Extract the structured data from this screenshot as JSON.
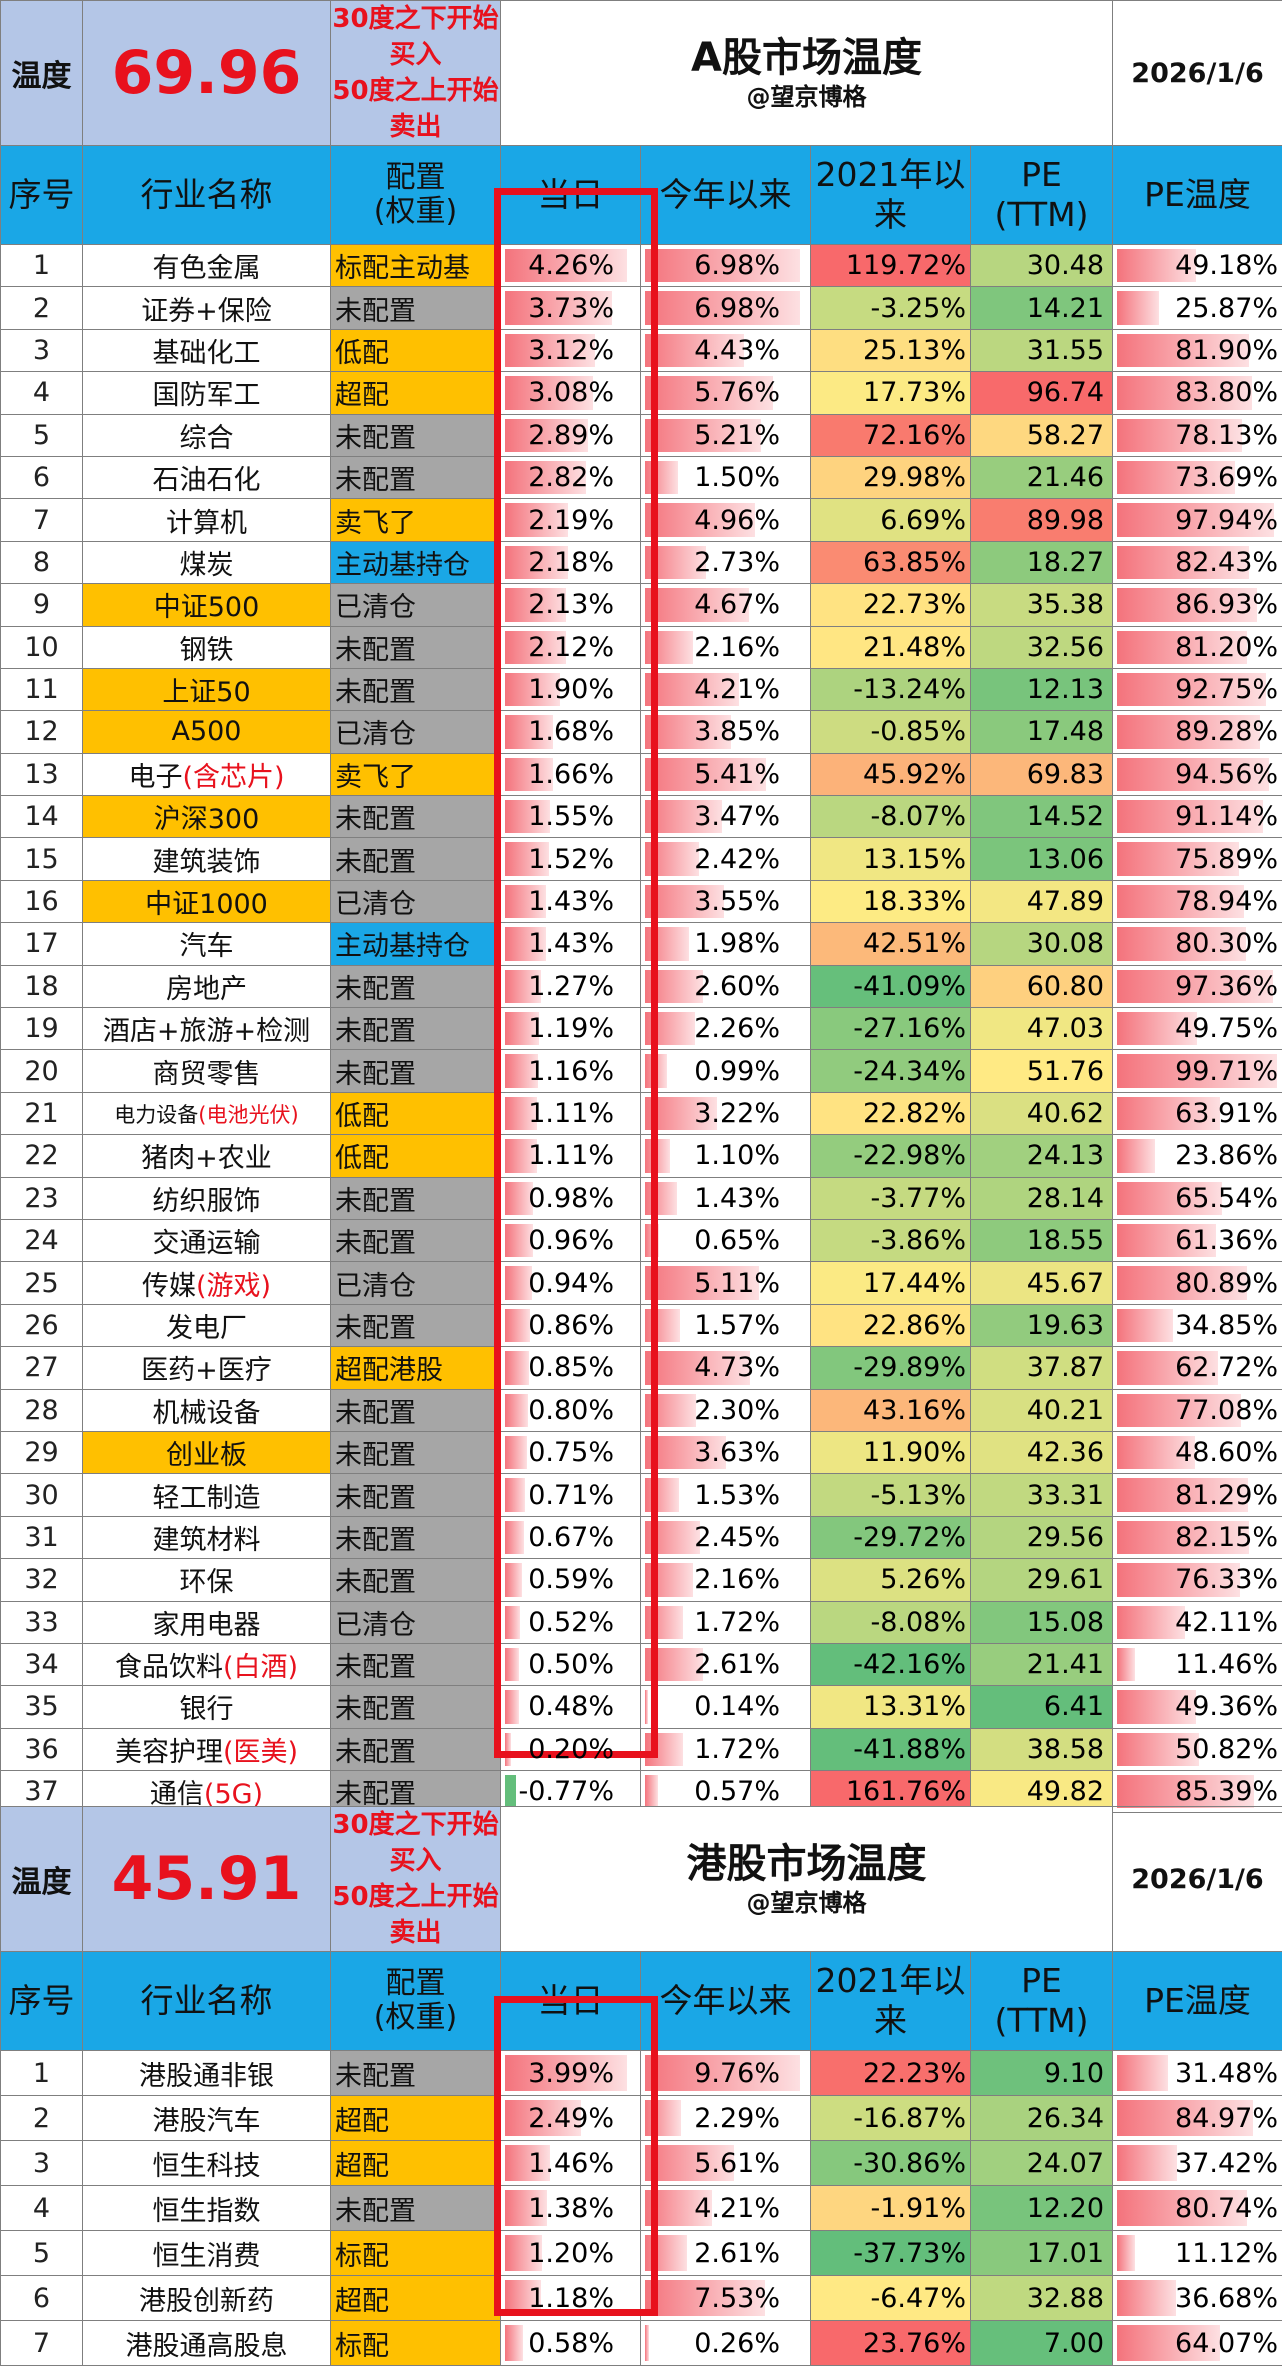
{
  "a_share": {
    "temp_label": "温度",
    "temp_value": "69.96",
    "rule_line1": "30度之下开始买入",
    "rule_line2": "50度之上开始卖出",
    "title": "A股市场温度",
    "author": "@望京博格",
    "date": "2026/1/6",
    "headers": [
      "序号",
      "行业名称",
      "配置\n(权重)",
      "当日",
      "今年以来",
      "2021年以来",
      "PE\n(TTM)",
      "PE温度"
    ],
    "rows": [
      {
        "idx": "1",
        "name": "有色金属",
        "alloc": "标配主动基",
        "daily": "4.26%",
        "daily_v": 4.26,
        "ytd": "6.98%",
        "ytd_v": 6.98,
        "since": "119.72%",
        "since_v": 119.72,
        "pe": "30.48",
        "pe_v": 30.48,
        "pet": "49.18%",
        "pet_v": 49.18
      },
      {
        "idx": "2",
        "name": "证券+保险",
        "alloc": "未配置",
        "daily": "3.73%",
        "daily_v": 3.73,
        "ytd": "6.98%",
        "ytd_v": 6.98,
        "since": "-3.25%",
        "since_v": -3.25,
        "pe": "14.21",
        "pe_v": 14.21,
        "pet": "25.87%",
        "pet_v": 25.87
      },
      {
        "idx": "3",
        "name": "基础化工",
        "alloc": "低配",
        "daily": "3.12%",
        "daily_v": 3.12,
        "ytd": "4.43%",
        "ytd_v": 4.43,
        "since": "25.13%",
        "since_v": 25.13,
        "pe": "31.55",
        "pe_v": 31.55,
        "pet": "81.90%",
        "pet_v": 81.9
      },
      {
        "idx": "4",
        "name": "国防军工",
        "alloc": "超配",
        "daily": "3.08%",
        "daily_v": 3.08,
        "ytd": "5.76%",
        "ytd_v": 5.76,
        "since": "17.73%",
        "since_v": 17.73,
        "pe": "96.74",
        "pe_v": 96.74,
        "pet": "83.80%",
        "pet_v": 83.8
      },
      {
        "idx": "5",
        "name": "综合",
        "alloc": "未配置",
        "daily": "2.89%",
        "daily_v": 2.89,
        "ytd": "5.21%",
        "ytd_v": 5.21,
        "since": "72.16%",
        "since_v": 72.16,
        "pe": "58.27",
        "pe_v": 58.27,
        "pet": "78.13%",
        "pet_v": 78.13
      },
      {
        "idx": "6",
        "name": "石油石化",
        "alloc": "未配置",
        "daily": "2.82%",
        "daily_v": 2.82,
        "ytd": "1.50%",
        "ytd_v": 1.5,
        "since": "29.98%",
        "since_v": 29.98,
        "pe": "21.46",
        "pe_v": 21.46,
        "pet": "73.69%",
        "pet_v": 73.69
      },
      {
        "idx": "7",
        "name": "计算机",
        "alloc": "卖飞了",
        "daily": "2.19%",
        "daily_v": 2.19,
        "ytd": "4.96%",
        "ytd_v": 4.96,
        "since": "6.69%",
        "since_v": 6.69,
        "pe": "89.98",
        "pe_v": 89.98,
        "pet": "97.94%",
        "pet_v": 97.94
      },
      {
        "idx": "8",
        "name": "煤炭",
        "alloc": "主动基持仓",
        "daily": "2.18%",
        "daily_v": 2.18,
        "ytd": "2.73%",
        "ytd_v": 2.73,
        "since": "63.85%",
        "since_v": 63.85,
        "pe": "18.27",
        "pe_v": 18.27,
        "pet": "82.43%",
        "pet_v": 82.43
      },
      {
        "idx": "9",
        "name": "中证500",
        "alloc": "已清仓",
        "daily": "2.13%",
        "daily_v": 2.13,
        "ytd": "4.67%",
        "ytd_v": 4.67,
        "since": "22.73%",
        "since_v": 22.73,
        "pe": "35.38",
        "pe_v": 35.38,
        "pet": "86.93%",
        "pet_v": 86.93
      },
      {
        "idx": "10",
        "name": "钢铁",
        "alloc": "未配置",
        "daily": "2.12%",
        "daily_v": 2.12,
        "ytd": "2.16%",
        "ytd_v": 2.16,
        "since": "21.48%",
        "since_v": 21.48,
        "pe": "32.56",
        "pe_v": 32.56,
        "pet": "81.20%",
        "pet_v": 81.2
      },
      {
        "idx": "11",
        "name": "上证50",
        "alloc": "未配置",
        "daily": "1.90%",
        "daily_v": 1.9,
        "ytd": "4.21%",
        "ytd_v": 4.21,
        "since": "-13.24%",
        "since_v": -13.24,
        "pe": "12.13",
        "pe_v": 12.13,
        "pet": "92.75%",
        "pet_v": 92.75
      },
      {
        "idx": "12",
        "name": "A500",
        "alloc": "已清仓",
        "daily": "1.68%",
        "daily_v": 1.68,
        "ytd": "3.85%",
        "ytd_v": 3.85,
        "since": "-0.85%",
        "since_v": -0.85,
        "pe": "17.48",
        "pe_v": 17.48,
        "pet": "89.28%",
        "pet_v": 89.28
      },
      {
        "idx": "13",
        "name": "电子",
        "name_red": "(含芯片)",
        "alloc": "卖飞了",
        "daily": "1.66%",
        "daily_v": 1.66,
        "ytd": "5.41%",
        "ytd_v": 5.41,
        "since": "45.92%",
        "since_v": 45.92,
        "pe": "69.83",
        "pe_v": 69.83,
        "pet": "94.56%",
        "pet_v": 94.56
      },
      {
        "idx": "14",
        "name": "沪深300",
        "alloc": "未配置",
        "daily": "1.55%",
        "daily_v": 1.55,
        "ytd": "3.47%",
        "ytd_v": 3.47,
        "since": "-8.07%",
        "since_v": -8.07,
        "pe": "14.52",
        "pe_v": 14.52,
        "pet": "91.14%",
        "pet_v": 91.14
      },
      {
        "idx": "15",
        "name": "建筑装饰",
        "alloc": "未配置",
        "daily": "1.52%",
        "daily_v": 1.52,
        "ytd": "2.42%",
        "ytd_v": 2.42,
        "since": "13.15%",
        "since_v": 13.15,
        "pe": "13.06",
        "pe_v": 13.06,
        "pet": "75.89%",
        "pet_v": 75.89
      },
      {
        "idx": "16",
        "name": "中证1000",
        "alloc": "已清仓",
        "daily": "1.43%",
        "daily_v": 1.43,
        "ytd": "3.55%",
        "ytd_v": 3.55,
        "since": "18.33%",
        "since_v": 18.33,
        "pe": "47.89",
        "pe_v": 47.89,
        "pet": "78.94%",
        "pet_v": 78.94
      },
      {
        "idx": "17",
        "name": "汽车",
        "alloc": "主动基持仓",
        "daily": "1.43%",
        "daily_v": 1.43,
        "ytd": "1.98%",
        "ytd_v": 1.98,
        "since": "42.51%",
        "since_v": 42.51,
        "pe": "30.08",
        "pe_v": 30.08,
        "pet": "80.30%",
        "pet_v": 80.3
      },
      {
        "idx": "18",
        "name": "房地产",
        "alloc": "未配置",
        "daily": "1.27%",
        "daily_v": 1.27,
        "ytd": "2.60%",
        "ytd_v": 2.6,
        "since": "-41.09%",
        "since_v": -41.09,
        "pe": "60.80",
        "pe_v": 60.8,
        "pet": "97.36%",
        "pet_v": 97.36
      },
      {
        "idx": "19",
        "name": "酒店+旅游+检测",
        "alloc": "未配置",
        "daily": "1.19%",
        "daily_v": 1.19,
        "ytd": "2.26%",
        "ytd_v": 2.26,
        "since": "-27.16%",
        "since_v": -27.16,
        "pe": "47.03",
        "pe_v": 47.03,
        "pet": "49.75%",
        "pet_v": 49.75
      },
      {
        "idx": "20",
        "name": "商贸零售",
        "alloc": "未配置",
        "daily": "1.16%",
        "daily_v": 1.16,
        "ytd": "0.99%",
        "ytd_v": 0.99,
        "since": "-24.34%",
        "since_v": -24.34,
        "pe": "51.76",
        "pe_v": 51.76,
        "pet": "99.71%",
        "pet_v": 99.71
      },
      {
        "idx": "21",
        "name": "电力设备",
        "name_red": "(电池光伏)",
        "alloc": "低配",
        "daily": "1.11%",
        "daily_v": 1.11,
        "ytd": "3.22%",
        "ytd_v": 3.22,
        "since": "22.82%",
        "since_v": 22.82,
        "pe": "40.62",
        "pe_v": 40.62,
        "pet": "63.91%",
        "pet_v": 63.91
      },
      {
        "idx": "22",
        "name": "猪肉+农业",
        "alloc": "低配",
        "daily": "1.11%",
        "daily_v": 1.11,
        "ytd": "1.10%",
        "ytd_v": 1.1,
        "since": "-22.98%",
        "since_v": -22.98,
        "pe": "24.13",
        "pe_v": 24.13,
        "pet": "23.86%",
        "pet_v": 23.86
      },
      {
        "idx": "23",
        "name": "纺织服饰",
        "alloc": "未配置",
        "daily": "0.98%",
        "daily_v": 0.98,
        "ytd": "1.43%",
        "ytd_v": 1.43,
        "since": "-3.77%",
        "since_v": -3.77,
        "pe": "28.14",
        "pe_v": 28.14,
        "pet": "65.54%",
        "pet_v": 65.54
      },
      {
        "idx": "24",
        "name": "交通运输",
        "alloc": "未配置",
        "daily": "0.96%",
        "daily_v": 0.96,
        "ytd": "0.65%",
        "ytd_v": 0.65,
        "since": "-3.86%",
        "since_v": -3.86,
        "pe": "18.55",
        "pe_v": 18.55,
        "pet": "61.36%",
        "pet_v": 61.36
      },
      {
        "idx": "25",
        "name": "传媒",
        "name_red": "(游戏)",
        "alloc": "已清仓",
        "daily": "0.94%",
        "daily_v": 0.94,
        "ytd": "5.11%",
        "ytd_v": 5.11,
        "since": "17.44%",
        "since_v": 17.44,
        "pe": "45.67",
        "pe_v": 45.67,
        "pet": "80.89%",
        "pet_v": 80.89
      },
      {
        "idx": "26",
        "name": "发电厂",
        "alloc": "未配置",
        "daily": "0.86%",
        "daily_v": 0.86,
        "ytd": "1.57%",
        "ytd_v": 1.57,
        "since": "22.86%",
        "since_v": 22.86,
        "pe": "19.63",
        "pe_v": 19.63,
        "pet": "34.85%",
        "pet_v": 34.85
      },
      {
        "idx": "27",
        "name": "医药+医疗",
        "alloc": "超配港股",
        "daily": "0.85%",
        "daily_v": 0.85,
        "ytd": "4.73%",
        "ytd_v": 4.73,
        "since": "-29.89%",
        "since_v": -29.89,
        "pe": "37.87",
        "pe_v": 37.87,
        "pet": "62.72%",
        "pet_v": 62.72
      },
      {
        "idx": "28",
        "name": "机械设备",
        "alloc": "未配置",
        "daily": "0.80%",
        "daily_v": 0.8,
        "ytd": "2.30%",
        "ytd_v": 2.3,
        "since": "43.16%",
        "since_v": 43.16,
        "pe": "40.21",
        "pe_v": 40.21,
        "pet": "77.08%",
        "pet_v": 77.08
      },
      {
        "idx": "29",
        "name": "创业板",
        "alloc": "未配置",
        "daily": "0.75%",
        "daily_v": 0.75,
        "ytd": "3.63%",
        "ytd_v": 3.63,
        "since": "11.90%",
        "since_v": 11.9,
        "pe": "42.36",
        "pe_v": 42.36,
        "pet": "48.60%",
        "pet_v": 48.6
      },
      {
        "idx": "30",
        "name": "轻工制造",
        "alloc": "未配置",
        "daily": "0.71%",
        "daily_v": 0.71,
        "ytd": "1.53%",
        "ytd_v": 1.53,
        "since": "-5.13%",
        "since_v": -5.13,
        "pe": "33.31",
        "pe_v": 33.31,
        "pet": "81.29%",
        "pet_v": 81.29
      },
      {
        "idx": "31",
        "name": "建筑材料",
        "alloc": "未配置",
        "daily": "0.67%",
        "daily_v": 0.67,
        "ytd": "2.45%",
        "ytd_v": 2.45,
        "since": "-29.72%",
        "since_v": -29.72,
        "pe": "29.56",
        "pe_v": 29.56,
        "pet": "82.15%",
        "pet_v": 82.15
      },
      {
        "idx": "32",
        "name": "环保",
        "alloc": "未配置",
        "daily": "0.59%",
        "daily_v": 0.59,
        "ytd": "2.16%",
        "ytd_v": 2.16,
        "since": "5.26%",
        "since_v": 5.26,
        "pe": "29.61",
        "pe_v": 29.61,
        "pet": "76.33%",
        "pet_v": 76.33
      },
      {
        "idx": "33",
        "name": "家用电器",
        "alloc": "已清仓",
        "daily": "0.52%",
        "daily_v": 0.52,
        "ytd": "1.72%",
        "ytd_v": 1.72,
        "since": "-8.08%",
        "since_v": -8.08,
        "pe": "15.08",
        "pe_v": 15.08,
        "pet": "42.11%",
        "pet_v": 42.11
      },
      {
        "idx": "34",
        "name": "食品饮料",
        "name_red": "(白酒)",
        "alloc": "未配置",
        "daily": "0.50%",
        "daily_v": 0.5,
        "ytd": "2.61%",
        "ytd_v": 2.61,
        "since": "-42.16%",
        "since_v": -42.16,
        "pe": "21.41",
        "pe_v": 21.41,
        "pet": "11.46%",
        "pet_v": 11.46
      },
      {
        "idx": "35",
        "name": "银行",
        "alloc": "未配置",
        "daily": "0.48%",
        "daily_v": 0.48,
        "ytd": "0.14%",
        "ytd_v": 0.14,
        "since": "13.31%",
        "since_v": 13.31,
        "pe": "6.41",
        "pe_v": 6.41,
        "pet": "49.36%",
        "pet_v": 49.36
      },
      {
        "idx": "36",
        "name": "美容护理",
        "name_red": "(医美)",
        "alloc": "未配置",
        "daily": "0.20%",
        "daily_v": 0.2,
        "ytd": "1.72%",
        "ytd_v": 1.72,
        "since": "-41.88%",
        "since_v": -41.88,
        "pe": "38.58",
        "pe_v": 38.58,
        "pet": "50.82%",
        "pet_v": 50.82
      },
      {
        "idx": "37",
        "name": "通信",
        "name_red": "(5G)",
        "alloc": "未配置",
        "daily": "-0.77%",
        "daily_v": -0.77,
        "ytd": "0.57%",
        "ytd_v": 0.57,
        "since": "161.76%",
        "since_v": 161.76,
        "pe": "49.82",
        "pe_v": 49.82,
        "pet": "85.39%",
        "pet_v": 85.39
      }
    ]
  },
  "hk_share": {
    "temp_label": "温度",
    "temp_value": "45.91",
    "rule_line1": "30度之下开始买入",
    "rule_line2": "50度之上开始卖出",
    "title": "港股市场温度",
    "author": "@望京博格",
    "date": "2026/1/6",
    "headers": [
      "序号",
      "行业名称",
      "配置\n(权重)",
      "当日",
      "今年以来",
      "2021年以来",
      "PE\n(TTM)",
      "PE温度"
    ],
    "rows": [
      {
        "idx": "1",
        "name": "港股通非银",
        "alloc": "未配置",
        "daily": "3.99%",
        "daily_v": 3.99,
        "ytd": "9.76%",
        "ytd_v": 9.76,
        "since": "22.23%",
        "since_v": 22.23,
        "pe": "9.10",
        "pe_v": 9.1,
        "pet": "31.48%",
        "pet_v": 31.48
      },
      {
        "idx": "2",
        "name": "港股汽车",
        "alloc": "超配",
        "daily": "2.49%",
        "daily_v": 2.49,
        "ytd": "2.29%",
        "ytd_v": 2.29,
        "since": "-16.87%",
        "since_v": -16.87,
        "pe": "26.34",
        "pe_v": 26.34,
        "pet": "84.97%",
        "pet_v": 84.97
      },
      {
        "idx": "3",
        "name": "恒生科技",
        "alloc": "超配",
        "daily": "1.46%",
        "daily_v": 1.46,
        "ytd": "5.61%",
        "ytd_v": 5.61,
        "since": "-30.86%",
        "since_v": -30.86,
        "pe": "24.07",
        "pe_v": 24.07,
        "pet": "37.42%",
        "pet_v": 37.42
      },
      {
        "idx": "4",
        "name": "恒生指数",
        "alloc": "未配置",
        "daily": "1.38%",
        "daily_v": 1.38,
        "ytd": "4.21%",
        "ytd_v": 4.21,
        "since": "-1.91%",
        "since_v": -1.91,
        "pe": "12.20",
        "pe_v": 12.2,
        "pet": "80.74%",
        "pet_v": 80.74
      },
      {
        "idx": "5",
        "name": "恒生消费",
        "alloc": "标配",
        "daily": "1.20%",
        "daily_v": 1.2,
        "ytd": "2.61%",
        "ytd_v": 2.61,
        "since": "-37.73%",
        "since_v": -37.73,
        "pe": "17.01",
        "pe_v": 17.01,
        "pet": "11.12%",
        "pet_v": 11.12
      },
      {
        "idx": "6",
        "name": "港股创新药",
        "alloc": "超配",
        "daily": "1.18%",
        "daily_v": 1.18,
        "ytd": "7.53%",
        "ytd_v": 7.53,
        "since": "-6.47%",
        "since_v": -6.47,
        "pe": "32.88",
        "pe_v": 32.88,
        "pet": "36.68%",
        "pet_v": 36.68
      },
      {
        "idx": "7",
        "name": "港股通高股息",
        "alloc": "标配",
        "daily": "0.58%",
        "daily_v": 0.58,
        "ytd": "0.26%",
        "ytd_v": 0.26,
        "since": "23.76%",
        "since_v": 23.76,
        "pe": "7.00",
        "pe_v": 7.0,
        "pet": "64.07%",
        "pet_v": 64.07
      }
    ]
  },
  "colors": {
    "header_blue": "#1aa7e6",
    "temp_bg": "#b4c6e7",
    "alert_red": "#e8111d",
    "alloc_gray": "#a6a6a6",
    "alloc_orange": "#ffc000",
    "alloc_blue": "#1aa7e6"
  }
}
